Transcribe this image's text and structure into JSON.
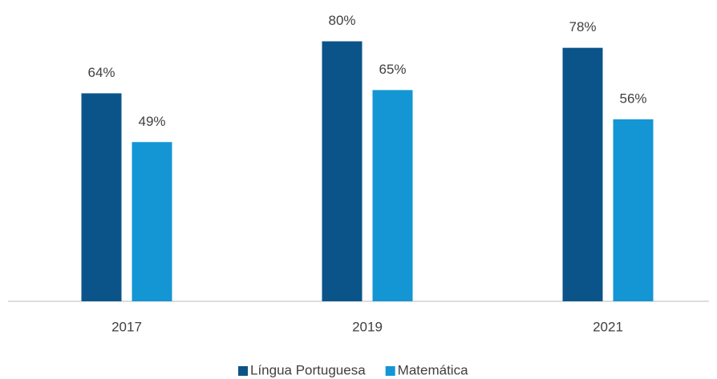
{
  "chart_data": {
    "type": "bar",
    "categories": [
      "2017",
      "2019",
      "2021"
    ],
    "series": [
      {
        "name": "Língua Portuguesa",
        "color": "#0b5489",
        "values": [
          64,
          80,
          78
        ],
        "value_labels": [
          "64%",
          "80%",
          "78%"
        ]
      },
      {
        "name": "Matemática",
        "color": "#1496d4",
        "values": [
          49,
          65,
          56
        ],
        "value_labels": [
          "49%",
          "65%",
          "56%"
        ]
      }
    ],
    "ylim": [
      0,
      90
    ]
  }
}
